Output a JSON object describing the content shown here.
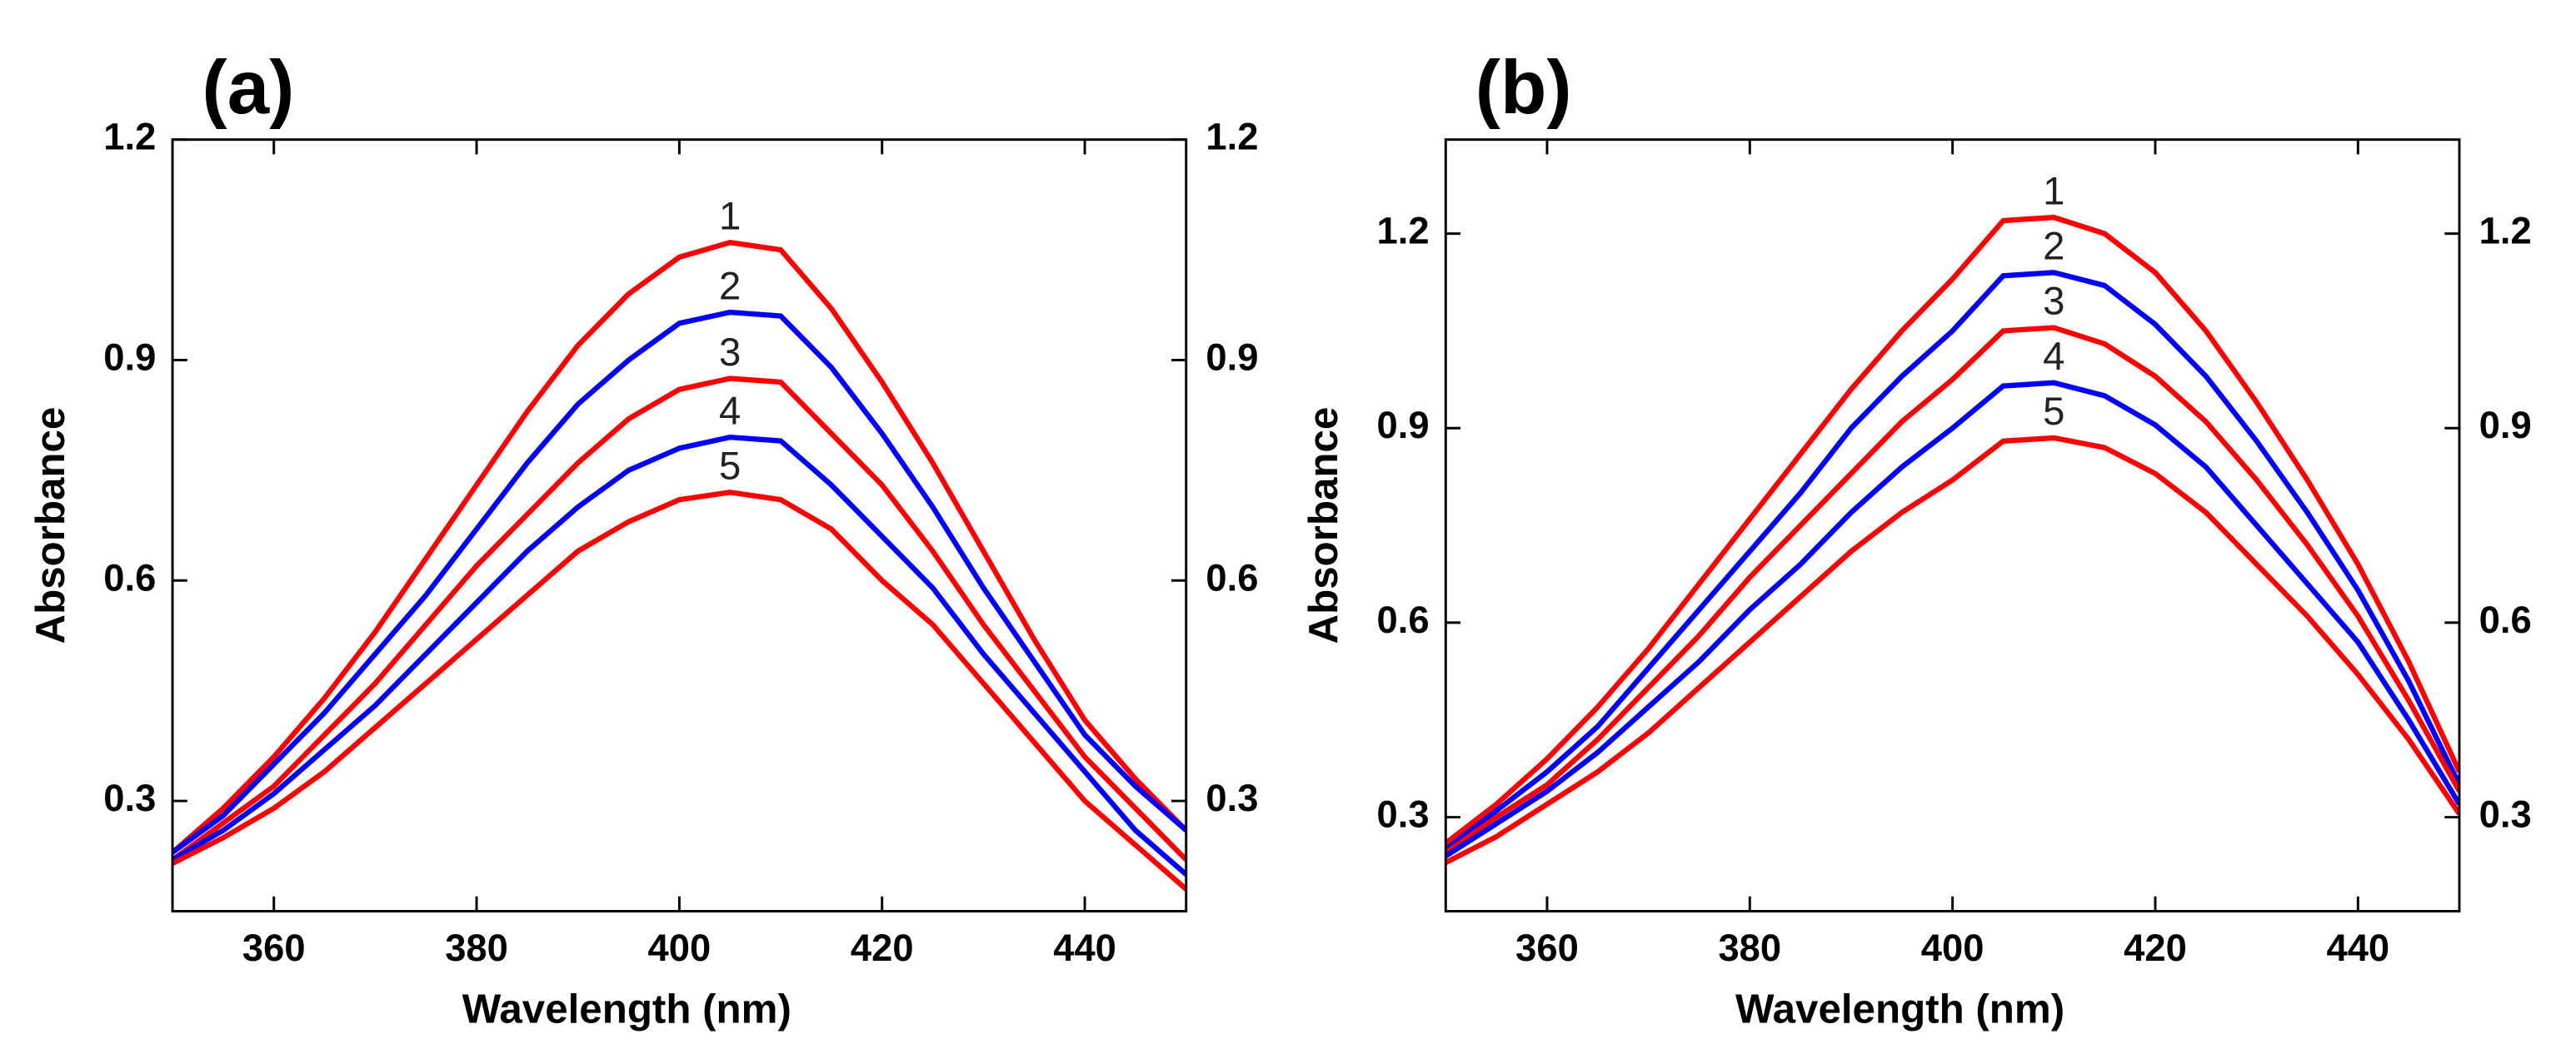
{
  "chart_data": [
    {
      "type": "line",
      "panel_label": "(a)",
      "x_label": "Wavelength (nm)",
      "y_label": "Absorbance",
      "x": [
        350,
        355,
        360,
        365,
        370,
        375,
        380,
        385,
        390,
        395,
        400,
        405,
        410,
        415,
        420,
        425,
        430,
        435,
        440,
        445,
        450
      ],
      "xlim": [
        350,
        450
      ],
      "xticks": [
        360,
        380,
        400,
        420,
        440
      ],
      "ylim": [
        0.15,
        1.2
      ],
      "yticks": [
        0.3,
        0.6,
        0.9,
        1.2
      ],
      "y2lim": [
        0.15,
        1.2
      ],
      "y2ticks": [
        0.3,
        0.6,
        0.9,
        1.2
      ],
      "series": [
        {
          "name": "1",
          "color": "#ff0000",
          "values": [
            0.23,
            0.29,
            0.36,
            0.44,
            0.53,
            0.63,
            0.73,
            0.83,
            0.92,
            0.99,
            1.04,
            1.06,
            1.05,
            0.97,
            0.87,
            0.76,
            0.64,
            0.52,
            0.41,
            0.33,
            0.26
          ]
        },
        {
          "name": "2",
          "color": "#0000ff",
          "values": [
            0.23,
            0.28,
            0.35,
            0.42,
            0.5,
            0.58,
            0.67,
            0.76,
            0.84,
            0.9,
            0.95,
            0.965,
            0.96,
            0.89,
            0.8,
            0.7,
            0.59,
            0.49,
            0.39,
            0.32,
            0.26
          ]
        },
        {
          "name": "3",
          "color": "#ff0000",
          "values": [
            0.22,
            0.27,
            0.32,
            0.39,
            0.46,
            0.54,
            0.62,
            0.69,
            0.76,
            0.82,
            0.86,
            0.875,
            0.87,
            0.8,
            0.73,
            0.64,
            0.54,
            0.45,
            0.36,
            0.29,
            0.22
          ]
        },
        {
          "name": "4",
          "color": "#0000ff",
          "values": [
            0.22,
            0.26,
            0.31,
            0.37,
            0.43,
            0.5,
            0.57,
            0.64,
            0.7,
            0.75,
            0.78,
            0.795,
            0.79,
            0.73,
            0.66,
            0.59,
            0.5,
            0.42,
            0.34,
            0.26,
            0.2
          ]
        },
        {
          "name": "5",
          "color": "#ff0000",
          "values": [
            0.215,
            0.25,
            0.29,
            0.34,
            0.4,
            0.46,
            0.52,
            0.58,
            0.64,
            0.68,
            0.71,
            0.72,
            0.71,
            0.67,
            0.6,
            0.54,
            0.46,
            0.38,
            0.3,
            0.24,
            0.18
          ]
        }
      ]
    },
    {
      "type": "line",
      "panel_label": "(b)",
      "x_label": "Wavelength (nm)",
      "y_label": "Absorbance",
      "x": [
        350,
        355,
        360,
        365,
        370,
        375,
        380,
        385,
        390,
        395,
        400,
        405,
        410,
        415,
        420,
        425,
        430,
        435,
        440,
        445,
        450
      ],
      "xlim": [
        350,
        450
      ],
      "xticks": [
        360,
        380,
        400,
        420,
        440
      ],
      "ylim": [
        0.155,
        1.345
      ],
      "yticks": [
        0.3,
        0.6,
        0.9,
        1.2
      ],
      "y2lim": [
        0.155,
        1.345
      ],
      "y2ticks": [
        0.3,
        0.6,
        0.9,
        1.2
      ],
      "series": [
        {
          "name": "1",
          "color": "#ff0000",
          "values": [
            0.26,
            0.32,
            0.39,
            0.47,
            0.56,
            0.66,
            0.76,
            0.86,
            0.96,
            1.05,
            1.13,
            1.22,
            1.225,
            1.2,
            1.14,
            1.05,
            0.94,
            0.82,
            0.69,
            0.54,
            0.37
          ]
        },
        {
          "name": "2",
          "color": "#0000ff",
          "values": [
            0.25,
            0.31,
            0.37,
            0.44,
            0.53,
            0.62,
            0.71,
            0.8,
            0.9,
            0.98,
            1.05,
            1.135,
            1.14,
            1.12,
            1.06,
            0.98,
            0.88,
            0.77,
            0.65,
            0.51,
            0.35
          ]
        },
        {
          "name": "3",
          "color": "#ff0000",
          "values": [
            0.245,
            0.3,
            0.35,
            0.42,
            0.5,
            0.58,
            0.67,
            0.75,
            0.83,
            0.91,
            0.975,
            1.05,
            1.055,
            1.03,
            0.98,
            0.91,
            0.82,
            0.72,
            0.61,
            0.48,
            0.34
          ]
        },
        {
          "name": "4",
          "color": "#0000ff",
          "values": [
            0.24,
            0.29,
            0.34,
            0.4,
            0.47,
            0.54,
            0.62,
            0.69,
            0.77,
            0.84,
            0.9,
            0.965,
            0.97,
            0.95,
            0.905,
            0.84,
            0.75,
            0.66,
            0.57,
            0.45,
            0.32
          ]
        },
        {
          "name": "5",
          "color": "#ff0000",
          "values": [
            0.23,
            0.27,
            0.32,
            0.37,
            0.43,
            0.5,
            0.57,
            0.64,
            0.71,
            0.77,
            0.82,
            0.88,
            0.885,
            0.87,
            0.83,
            0.77,
            0.69,
            0.61,
            0.52,
            0.42,
            0.305
          ]
        }
      ]
    }
  ]
}
